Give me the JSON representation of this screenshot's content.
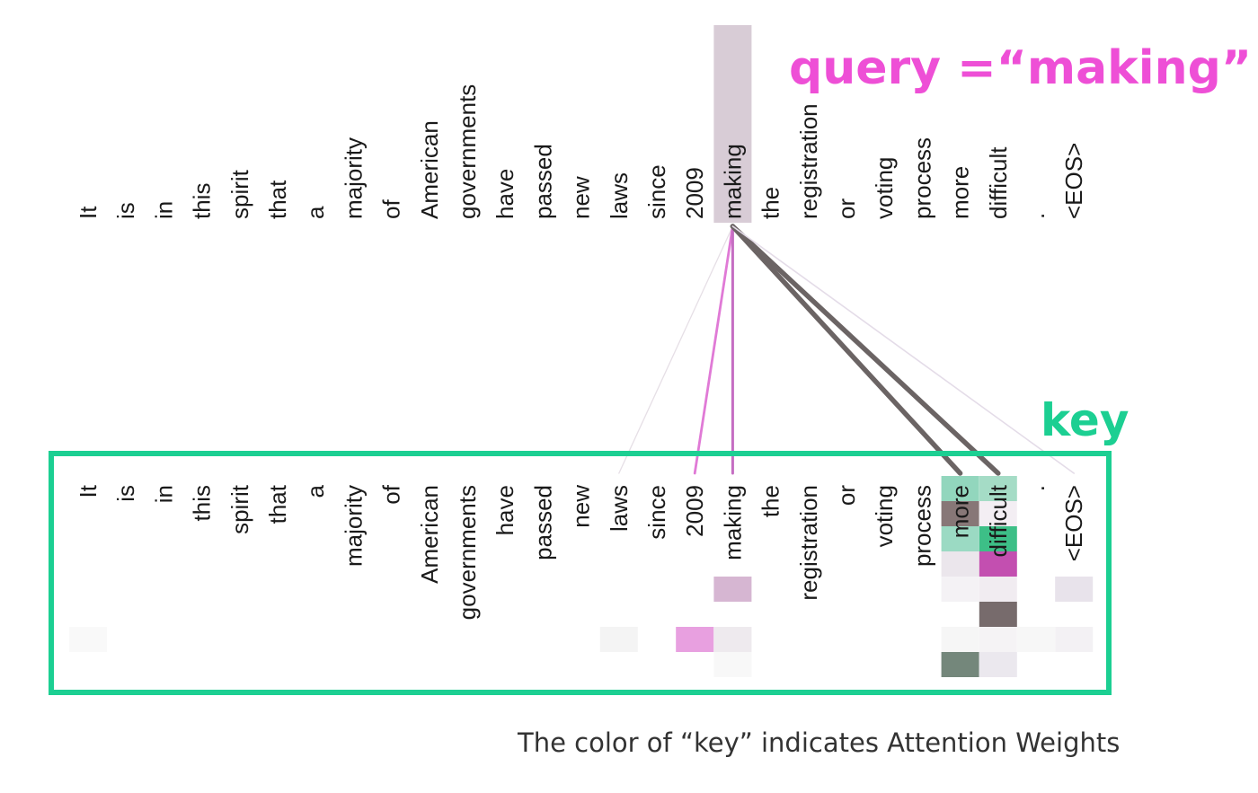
{
  "tokens": [
    "It",
    "is",
    "in",
    "this",
    "spirit",
    "that",
    "a",
    "majority",
    "of",
    "American",
    "governments",
    "have",
    "passed",
    "new",
    "laws",
    "since",
    "2009",
    "making",
    "the",
    "registration",
    "or",
    "voting",
    "process",
    "more",
    "difficult",
    ".",
    "<EOS>"
  ],
  "query_token": "making",
  "labels": {
    "query": "query =“making”",
    "key": "key",
    "caption": "The color of “key” indicates Attention Weights"
  },
  "colors": {
    "query_text": "#ee4fd6",
    "key_text": "#1ccf92",
    "key_box": "#1ccf92",
    "query_highlight": "#d8ccd6",
    "token_text": "#1a1a1a"
  },
  "attention_links": [
    {
      "to": "laws",
      "weight": 0.05,
      "color": "#e6dfe6"
    },
    {
      "to": "2009",
      "weight": 0.35,
      "color": "#e07ad6"
    },
    {
      "to": "making",
      "weight": 0.4,
      "color": "#c56ec2"
    },
    {
      "to": "more",
      "weight": 0.9,
      "color": "#6b6464"
    },
    {
      "to": "difficult",
      "weight": 0.9,
      "color": "#6b6464"
    },
    {
      "to": "<EOS>",
      "weight": 0.12,
      "color": "#e4dce8"
    }
  ],
  "attention_cells": [
    {
      "token": "more",
      "row": 0,
      "color": "#92d6bd"
    },
    {
      "token": "difficult",
      "row": 0,
      "color": "#a5dcc6"
    },
    {
      "token": "more",
      "row": 1,
      "color": "#877777"
    },
    {
      "token": "difficult",
      "row": 1,
      "color": "#f3eef3"
    },
    {
      "token": "more",
      "row": 2,
      "color": "#9bdac3"
    },
    {
      "token": "difficult",
      "row": 2,
      "color": "#3dbf87"
    },
    {
      "token": "more",
      "row": 3,
      "color": "#ebe6ec"
    },
    {
      "token": "difficult",
      "row": 3,
      "color": "#c34fb0"
    },
    {
      "token": "making",
      "row": 4,
      "color": "#d6b6d2"
    },
    {
      "token": "more",
      "row": 4,
      "color": "#f4f2f5"
    },
    {
      "token": "difficult",
      "row": 4,
      "color": "#f1ecf1"
    },
    {
      "token": "<EOS>",
      "row": 4,
      "color": "#e8e3eb"
    },
    {
      "token": "difficult",
      "row": 5,
      "color": "#776b6c"
    },
    {
      "token": "laws",
      "row": 6,
      "color": "#f4f4f4"
    },
    {
      "token": "2009",
      "row": 6,
      "color": "#e8a0e0"
    },
    {
      "token": "making",
      "row": 6,
      "color": "#eeeaee"
    },
    {
      "token": "more",
      "row": 6,
      "color": "#f6f6f6"
    },
    {
      "token": "difficult",
      "row": 6,
      "color": "#f5f3f5"
    },
    {
      "token": ".",
      "row": 6,
      "color": "#f7f7f7"
    },
    {
      "token": "<EOS>",
      "row": 6,
      "color": "#f3f1f4"
    },
    {
      "token": "It",
      "row": 6,
      "color": "#f9f9f9"
    },
    {
      "token": "making",
      "row": 7,
      "color": "#f8f8f8"
    },
    {
      "token": "more",
      "row": 7,
      "color": "#74877b"
    },
    {
      "token": "difficult",
      "row": 7,
      "color": "#ebe8ee"
    }
  ]
}
